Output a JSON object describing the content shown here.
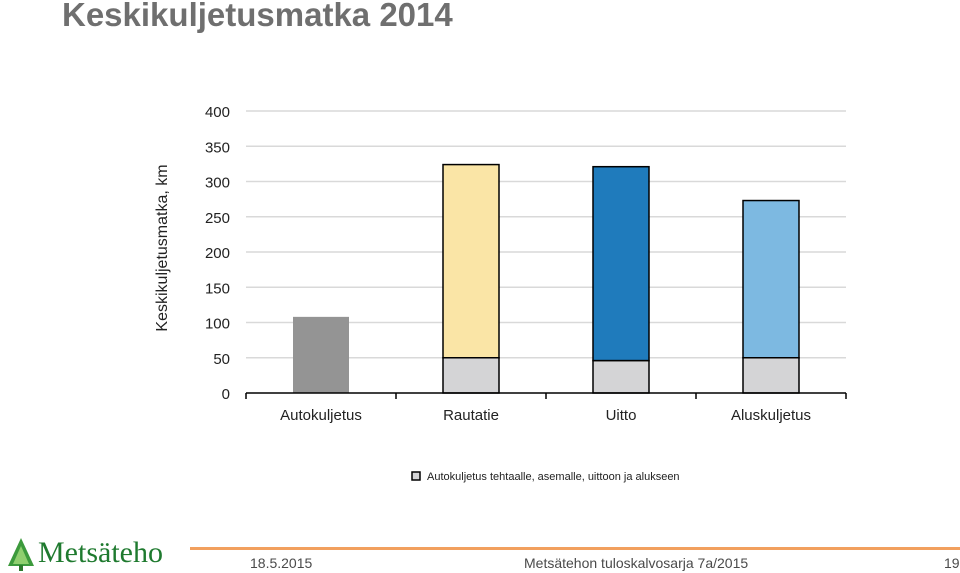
{
  "slide": {
    "title": "Keskikuljetusmatka 2014"
  },
  "chart_data": {
    "type": "bar",
    "stacked": true,
    "categories": [
      "Autokuljetus",
      "Rautatie",
      "Uitto",
      "Aluskuljetus"
    ],
    "series": [
      {
        "name": "Autokuljetus tehtaalle, asemalle, uittoon ja alukseen",
        "values": [
          108,
          50,
          46,
          50
        ],
        "colors": [
          "#949494",
          "#d4d4d6",
          "#d4d4d6",
          "#d4d4d6"
        ]
      },
      {
        "name": "",
        "values": [
          0,
          274,
          275,
          223
        ],
        "colors": [
          "#949494",
          "#fae5a6",
          "#1f7bbc",
          "#7db9e1"
        ]
      }
    ],
    "ylabel": "Keskikuljetusmatka, km",
    "xlabel": "",
    "ylim": [
      0,
      400
    ],
    "yticks": [
      0,
      50,
      100,
      150,
      200,
      250,
      300,
      350,
      400
    ],
    "grid": true,
    "legend": "bottom-center",
    "legend_label": "Autokuljetus tehtaalle, asemalle, uittoon ja alukseen"
  },
  "footer": {
    "logo_text": "Metsäteho",
    "date": "18.5.2015",
    "series_name": "Metsätehon tuloskalvosarja 7a/2015",
    "page": "19"
  }
}
